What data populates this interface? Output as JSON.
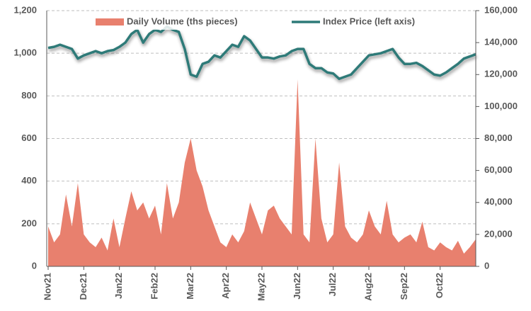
{
  "chart_data": {
    "type": "line",
    "categories": [
      "Nov21",
      null,
      null,
      null,
      null,
      null,
      "Dec21",
      null,
      null,
      null,
      null,
      null,
      "Jan22",
      null,
      null,
      null,
      null,
      null,
      "Feb22",
      null,
      null,
      null,
      null,
      null,
      "Mar22",
      null,
      null,
      null,
      null,
      null,
      "Apr22",
      null,
      null,
      null,
      null,
      null,
      "May22",
      null,
      null,
      null,
      null,
      null,
      "Jun22",
      null,
      null,
      null,
      null,
      null,
      "Jul22",
      null,
      null,
      null,
      null,
      null,
      "Aug22",
      null,
      null,
      null,
      null,
      null,
      "Sep22",
      null,
      null,
      null,
      null,
      null,
      "Oct22",
      null,
      null,
      null,
      null,
      null,
      null
    ],
    "series": [
      {
        "name": "Daily Volume (ths pieces)",
        "type": "area",
        "axis": "y2",
        "color": "#e8806e",
        "values": [
          25000,
          15000,
          20000,
          45000,
          25000,
          52000,
          20000,
          15000,
          12000,
          18000,
          10000,
          30000,
          12000,
          30000,
          47000,
          35000,
          40000,
          30000,
          38000,
          20000,
          52000,
          30000,
          40000,
          65000,
          80000,
          60000,
          50000,
          35000,
          25000,
          15000,
          12000,
          20000,
          15000,
          22000,
          40000,
          30000,
          20000,
          35000,
          38000,
          30000,
          25000,
          20000,
          117000,
          20000,
          15000,
          80000,
          30000,
          15000,
          20000,
          65000,
          25000,
          18000,
          15000,
          20000,
          35000,
          25000,
          20000,
          41000,
          20000,
          15000,
          18000,
          20000,
          15000,
          28000,
          12000,
          10000,
          15000,
          12000,
          10000,
          16000,
          8000,
          12000,
          17000
        ]
      },
      {
        "name": "Index Price (left axis)",
        "type": "line",
        "color": "#2e7a78",
        "values": [
          1025,
          1030,
          1040,
          1030,
          1020,
          975,
          990,
          1000,
          1010,
          1000,
          1010,
          1015,
          1030,
          1050,
          1090,
          1110,
          1050,
          1090,
          1110,
          1100,
          1125,
          1110,
          1100,
          1020,
          900,
          890,
          950,
          960,
          990,
          980,
          1010,
          1040,
          1030,
          1080,
          1060,
          1020,
          980,
          980,
          975,
          985,
          990,
          1010,
          1020,
          1020,
          950,
          930,
          930,
          910,
          905,
          880,
          890,
          900,
          930,
          960,
          990,
          995,
          1000,
          1010,
          1020,
          980,
          950,
          950,
          955,
          940,
          920,
          900,
          895,
          910,
          930,
          950,
          975,
          985,
          995
        ]
      }
    ],
    "ylim": [
      0,
      1200
    ],
    "yticks": [
      0,
      200,
      400,
      600,
      800,
      {
        "value": 1000,
        "label": "1,000"
      },
      {
        "value": 1200,
        "label": "1,200"
      }
    ],
    "y2lim": [
      0,
      160000
    ],
    "y2ticks": [
      0,
      {
        "value": 20000,
        "label": "20,000"
      },
      {
        "value": 40000,
        "label": "40,000"
      },
      {
        "value": 60000,
        "label": "60,000"
      },
      {
        "value": 80000,
        "label": "80,000"
      },
      {
        "value": 100000,
        "label": "100,000"
      },
      {
        "value": 120000,
        "label": "120,000"
      },
      {
        "value": 140000,
        "label": "140,000"
      },
      {
        "value": 160000,
        "label": "160,000"
      }
    ],
    "grid": true,
    "legend": "top"
  }
}
